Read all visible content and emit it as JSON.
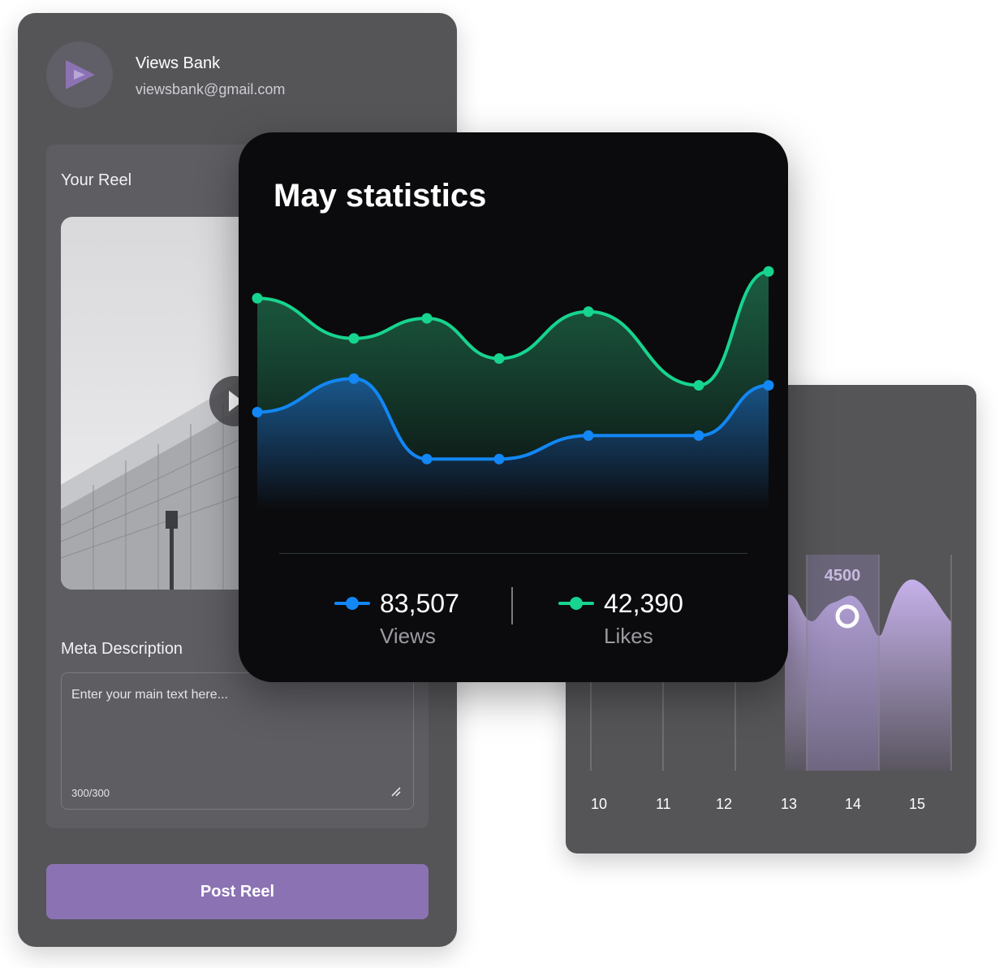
{
  "account": {
    "name": "Views Bank",
    "email": "viewsbank@gmail.com"
  },
  "reel": {
    "title": "Your Reel"
  },
  "meta": {
    "label": "Meta Description",
    "placeholder": "Enter your main text here...",
    "count": "300/300"
  },
  "post_button": "Post Reel",
  "stats_card": {
    "title": "May statistics",
    "views_value": "83,507",
    "views_label": "Views",
    "likes_value": "42,390",
    "likes_label": "Likes"
  },
  "colors": {
    "views": "#1287f5",
    "likes": "#17d48f",
    "accent": "#8b73b3"
  },
  "chart_data": [
    {
      "type": "area",
      "title": "May statistics",
      "series": [
        {
          "name": "Likes",
          "values": [
            62,
            50,
            56,
            44,
            58,
            36,
            70
          ]
        },
        {
          "name": "Views",
          "values": [
            28,
            38,
            14,
            14,
            21,
            21,
            36
          ]
        }
      ],
      "ylim": [
        0,
        80
      ],
      "grid": false
    },
    {
      "type": "area",
      "categories": [
        "10",
        "11",
        "12",
        "13",
        "14",
        "15"
      ],
      "highlight": {
        "category": "14",
        "label": "4500"
      },
      "ylim": [
        0,
        8000
      ],
      "grid": true
    }
  ]
}
